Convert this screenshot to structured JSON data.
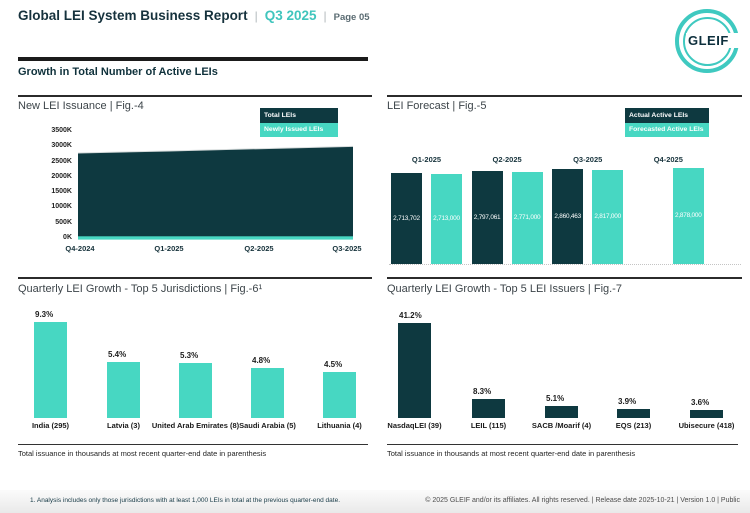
{
  "header": {
    "title": "Global LEI System Business Report",
    "quarter": "Q3 2025",
    "page": "Page 05",
    "sep": "|"
  },
  "logo": {
    "text": "GLEIF"
  },
  "section": {
    "title": "Growth in Total Number of Active LEIs"
  },
  "colors": {
    "dark": "#0e3940",
    "teal": "#47d7c2",
    "area_edge": "#d7dcdc",
    "accent_text": "#40c5bd"
  },
  "chart_data": [
    {
      "id": "fig4",
      "type": "area",
      "title": "New LEI Issuance | Fig.-4",
      "legend": [
        "Total LEIs",
        "Newly Issued LEIs"
      ],
      "legend_position": "top-right",
      "grid": false,
      "x": [
        "Q4-2024",
        "Q1-2025",
        "Q2-2025",
        "Q3-2025"
      ],
      "ylim": [
        0,
        3500000
      ],
      "yticks": [
        "3500K",
        "3000K",
        "2500K",
        "2000K",
        "1500K",
        "1000K",
        "500K",
        "0K"
      ],
      "series": [
        {
          "name": "Total LEIs",
          "values": [
            2780000,
            2845000,
            2920000,
            2995000
          ]
        },
        {
          "name": "Newly Issued LEIs",
          "values": [
            95000,
            95000,
            95000,
            95000
          ]
        }
      ]
    },
    {
      "id": "fig5",
      "type": "bar",
      "title": "LEI Forecast | Fig.-5",
      "legend": [
        "Actual Active LEIs",
        "Forecasted Active LEIs"
      ],
      "legend_position": "top-right",
      "grid": false,
      "categories": [
        "Q1-2025",
        "Q2-2025",
        "Q3-2025",
        "Q4-2025"
      ],
      "series": [
        {
          "name": "Actual Active LEIs",
          "values": [
            2713702,
            2797061,
            2860463,
            null
          ],
          "labels": [
            "2,713,702",
            "2,797,061",
            "2,860,463",
            null
          ]
        },
        {
          "name": "Forecasted Active LEIs",
          "values": [
            2713000,
            2771000,
            2817000,
            2878000
          ],
          "labels": [
            "2,713,000",
            "2,771,000",
            "2,817,000",
            "2,878,000"
          ]
        }
      ]
    },
    {
      "id": "fig6",
      "type": "bar",
      "title": "Quarterly LEI Growth - Top 5 Jurisdictions | Fig.-6¹",
      "grid": false,
      "categories": [
        "India (295)",
        "Latvia (3)",
        "United Arab Emirates (8)",
        "Saudi Arabia (5)",
        "Lithuania (4)"
      ],
      "values": [
        9.3,
        5.4,
        5.3,
        4.8,
        4.5
      ],
      "labels": [
        "9.3%",
        "5.4%",
        "5.3%",
        "4.8%",
        "4.5%"
      ],
      "note": "Total issuance in thousands at most recent quarter-end date in parenthesis"
    },
    {
      "id": "fig7",
      "type": "bar",
      "title": "Quarterly LEI Growth - Top 5 LEI Issuers | Fig.-7",
      "grid": false,
      "categories": [
        "NasdaqLEI (39)",
        "LEIL (115)",
        "SACB /Moarif (4)",
        "EQS (213)",
        "Ubisecure (418)"
      ],
      "values": [
        41.2,
        8.3,
        5.1,
        3.9,
        3.6
      ],
      "labels": [
        "41.2%",
        "8.3%",
        "5.1%",
        "3.9%",
        "3.6%"
      ],
      "note": "Total issuance in thousands at most recent quarter-end date in parenthesis"
    }
  ],
  "footer": {
    "footnote": "1. Analysis includes only those jurisdictions with at least 1,000 LEIs in total at the previous quarter-end date.",
    "copyright": "© 2025 GLEIF and/or its affiliates. All rights reserved. | Release date 2025-10-21 | Version 1.0 | Public"
  }
}
